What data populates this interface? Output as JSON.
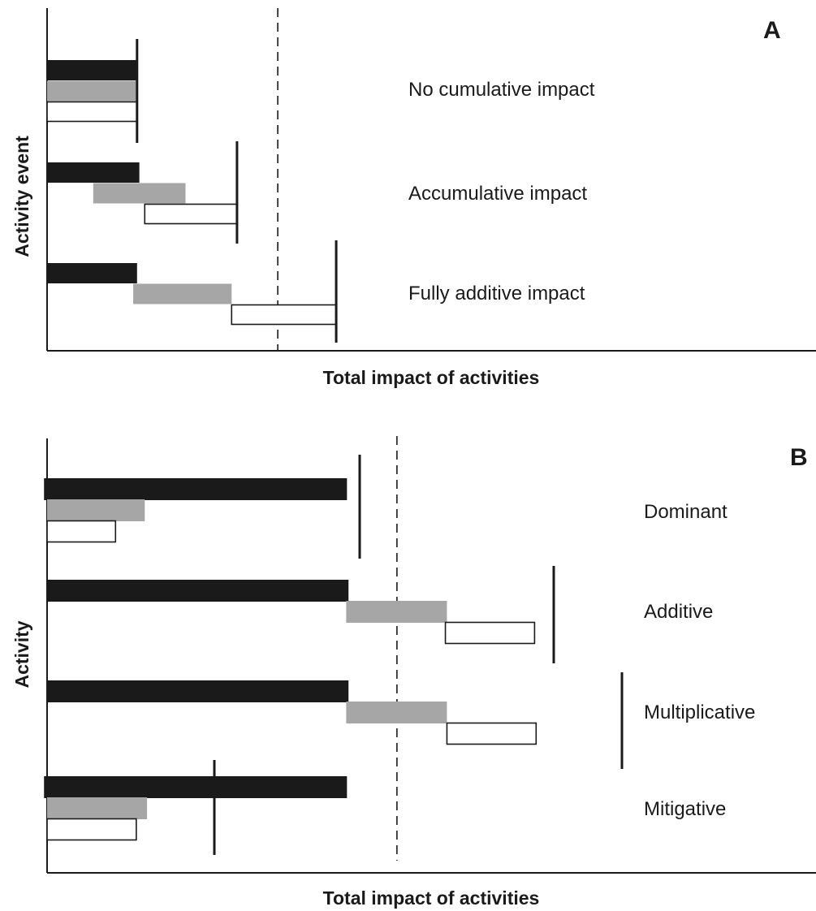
{
  "panels": [
    {
      "letter": "A",
      "xlabel": "Total impact of activities",
      "ylabel": "Activity event",
      "colors": {
        "black": "#1a1a1a",
        "gray": "#a6a6a6",
        "white": "#ffffff",
        "outline": "#1a1a1a"
      },
      "rows": [
        {
          "label": "No cumulative impact",
          "bars": [
            {
              "fill": "black",
              "start": 0,
              "end": 0.117
            },
            {
              "fill": "gray",
              "start": 0,
              "end": 0.117
            },
            {
              "fill": "white",
              "start": 0,
              "end": 0.117
            }
          ],
          "total": 0.117
        },
        {
          "label": "Accumulative impact",
          "bars": [
            {
              "fill": "black",
              "start": 0,
              "end": 0.12
            },
            {
              "fill": "gray",
              "start": 0.06,
              "end": 0.18
            },
            {
              "fill": "white",
              "start": 0.127,
              "end": 0.247
            }
          ],
          "total": 0.247
        },
        {
          "label": "Fully additive impact",
          "bars": [
            {
              "fill": "black",
              "start": 0,
              "end": 0.117
            },
            {
              "fill": "gray",
              "start": 0.112,
              "end": 0.24
            },
            {
              "fill": "white",
              "start": 0.24,
              "end": 0.376
            }
          ],
          "total": 0.376
        }
      ],
      "threshold": 0.3
    },
    {
      "letter": "B",
      "xlabel": "Total impact of activities",
      "ylabel": "Activity",
      "colors": {
        "black": "#1a1a1a",
        "gray": "#a6a6a6",
        "white": "#ffffff",
        "outline": "#1a1a1a"
      },
      "rows": [
        {
          "label": "Dominant",
          "bars": [
            {
              "fill": "black",
              "start": -0.004,
              "end": 0.39
            },
            {
              "fill": "gray",
              "start": 0,
              "end": 0.127
            },
            {
              "fill": "white",
              "start": 0,
              "end": 0.089
            }
          ],
          "total": 0.39
        },
        {
          "label": "Additive",
          "bars": [
            {
              "fill": "black",
              "start": 0,
              "end": 0.392
            },
            {
              "fill": "gray",
              "start": 0.389,
              "end": 0.52
            },
            {
              "fill": "white",
              "start": 0.518,
              "end": 0.634
            }
          ],
          "total": 0.634
        },
        {
          "label": "Multiplicative",
          "bars": [
            {
              "fill": "black",
              "start": 0,
              "end": 0.392
            },
            {
              "fill": "gray",
              "start": 0.389,
              "end": 0.52
            },
            {
              "fill": "white",
              "start": 0.52,
              "end": 0.636
            }
          ],
          "total": 0.718
        },
        {
          "label": "Mitigative",
          "bars": [
            {
              "fill": "black",
              "start": -0.004,
              "end": 0.39
            },
            {
              "fill": "gray",
              "start": 0,
              "end": 0.13
            },
            {
              "fill": "white",
              "start": 0,
              "end": 0.116
            }
          ],
          "total": 0.209
        }
      ],
      "threshold": 0.455
    }
  ]
}
